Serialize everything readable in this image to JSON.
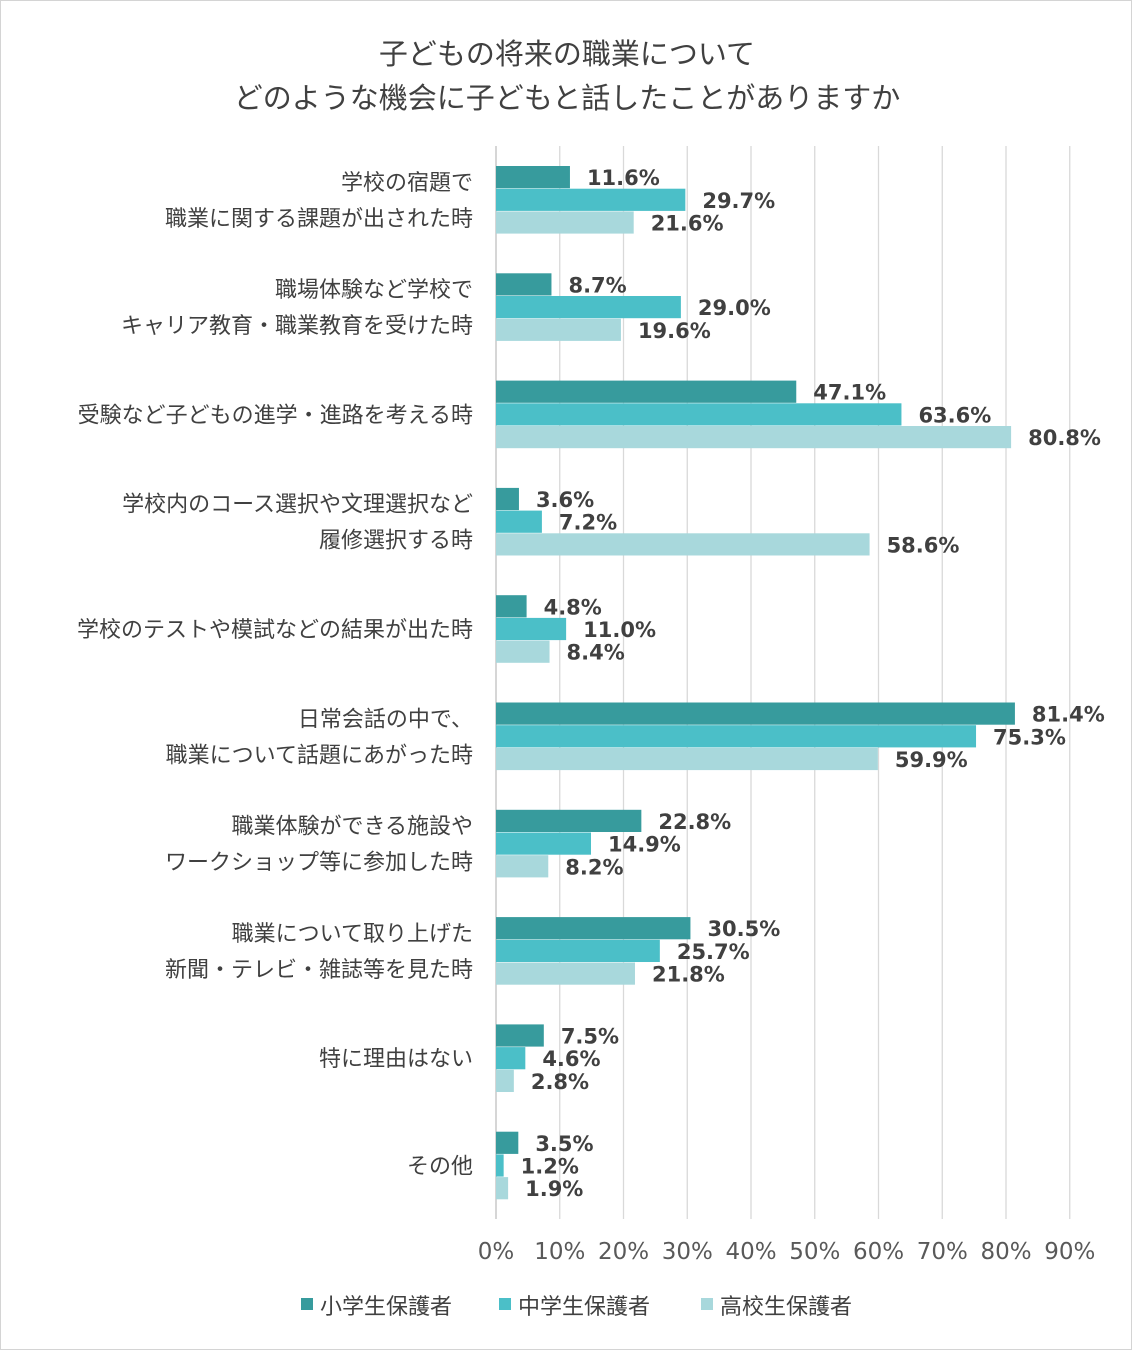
{
  "chart_data": {
    "type": "bar",
    "orientation": "horizontal",
    "title_lines": [
      "子どもの将来の職業について",
      "どのような機会に子どもと話したことがありますか"
    ],
    "categories": [
      [
        "学校の宿題で",
        "職業に関する課題が出された時"
      ],
      [
        "職場体験など学校で",
        "キャリア教育・職業教育を受けた時"
      ],
      [
        "受験など子どもの進学・進路を考える時"
      ],
      [
        "学校内のコース選択や文理選択など",
        "履修選択する時"
      ],
      [
        "学校のテストや模試などの結果が出た時"
      ],
      [
        "日常会話の中で、",
        "職業について話題にあがった時"
      ],
      [
        "職業体験ができる施設や",
        "ワークショップ等に参加した時"
      ],
      [
        "職業について取り上げた",
        "新聞・テレビ・雑誌等を見た時"
      ],
      [
        "特に理由はない"
      ],
      [
        "その他"
      ]
    ],
    "series": [
      {
        "name": "小学生保護者",
        "color": "#379b9d",
        "values": [
          11.6,
          8.7,
          47.1,
          3.6,
          4.8,
          81.4,
          22.8,
          30.5,
          7.5,
          3.5
        ]
      },
      {
        "name": "中学生保護者",
        "color": "#4bbfc8",
        "values": [
          29.7,
          29.0,
          63.6,
          7.2,
          11.0,
          75.3,
          14.9,
          25.7,
          4.6,
          1.2
        ]
      },
      {
        "name": "高校生保護者",
        "color": "#a8d8dc",
        "values": [
          21.6,
          19.6,
          80.8,
          58.6,
          8.4,
          59.9,
          8.2,
          21.8,
          2.8,
          1.9
        ]
      }
    ],
    "value_suffix": "%",
    "xlim": [
      0,
      90
    ],
    "x_ticks": [
      "0%",
      "10%",
      "20%",
      "30%",
      "40%",
      "50%",
      "60%",
      "70%",
      "80%",
      "90%"
    ],
    "gridlines": true,
    "legend_position": "bottom"
  }
}
